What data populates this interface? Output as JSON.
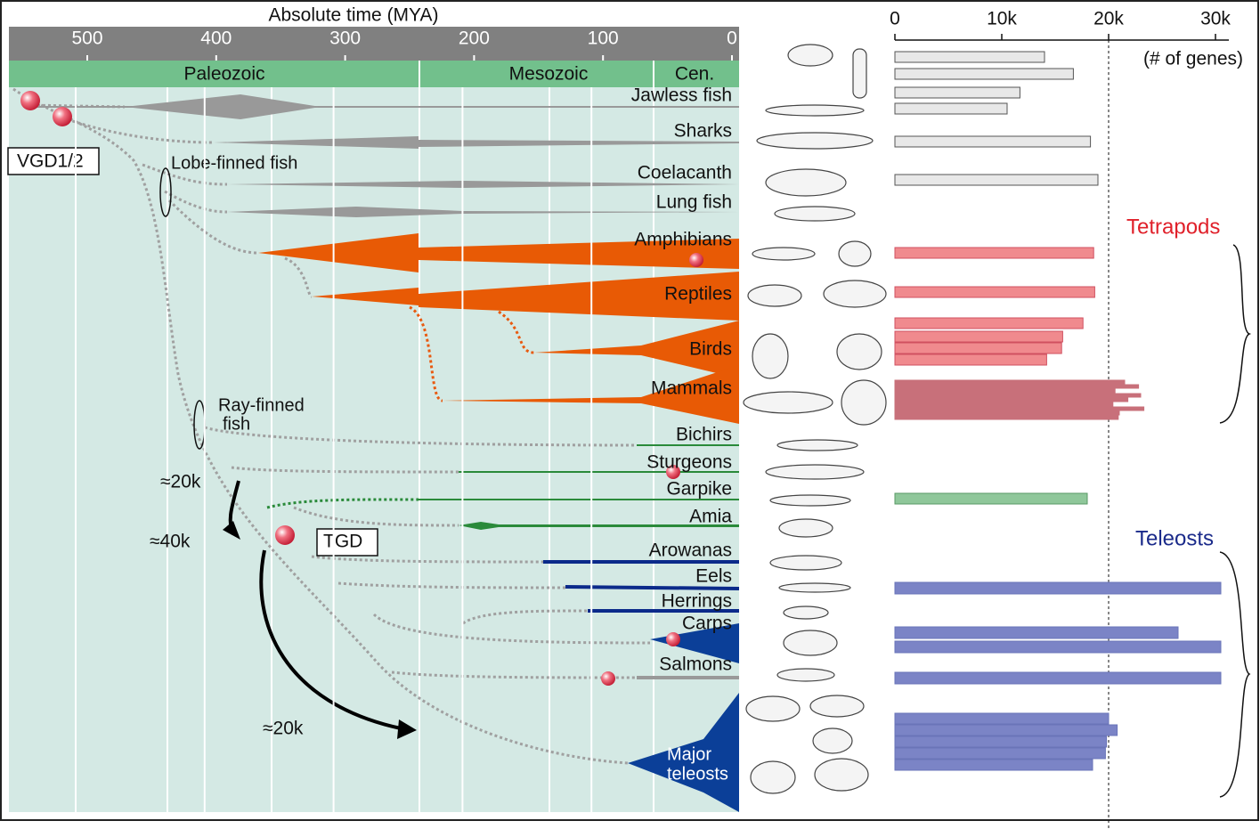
{
  "header": {
    "time_title": "Absolute time (MYA)",
    "gene_unit": "(# of genes)"
  },
  "time_ticks": [
    500,
    400,
    300,
    200,
    100,
    0
  ],
  "eras": [
    "Paleozoic",
    "Mesozoic",
    "Cen."
  ],
  "taxa": [
    "Jawless fish",
    "Sharks",
    "Coelacanth",
    "Lung fish",
    "Amphibians",
    "Reptiles",
    "Birds",
    "Mammals",
    "Bichirs",
    "Sturgeons",
    "Garpike",
    "Amia",
    "Arowanas",
    "Eels",
    "Herrings",
    "Carps",
    "Salmons"
  ],
  "major_teleosts": [
    "Major",
    "teleosts"
  ],
  "annotations": {
    "vgd": "VGD1/2",
    "lobe": "Lobe-finned fish",
    "ray": [
      "Ray-finned",
      "fish"
    ],
    "k20a": "≈20k",
    "k40": "≈40k",
    "tgd": "TGD",
    "k20b": "≈20k",
    "tetrapods": "Tetrapods",
    "teleosts": "Teleosts"
  },
  "gene_ticks": [
    0,
    {
      "value": 10000,
      "label": "10k"
    },
    {
      "value": 20000,
      "label": "20k"
    },
    {
      "value": 30000,
      "label": "30k"
    }
  ],
  "gene_bars": [
    {
      "color": "#e8e8e8",
      "stroke": "#555555",
      "values": [
        14000,
        16700,
        11700,
        10500,
        18300,
        19000
      ]
    },
    {
      "color": "#f08a8e",
      "stroke": "#d05060",
      "values": [
        18600,
        18700,
        17600,
        15700,
        15600,
        14200
      ]
    },
    {
      "color": "#c8707a",
      "stroke": "#c8707a",
      "values": [
        21500,
        22800,
        20600,
        23000,
        21800,
        20400,
        23300,
        21000,
        20900
      ]
    },
    {
      "color": "#8fc79a",
      "stroke": "#5a9a66",
      "values": [
        18000
      ]
    },
    {
      "color": "#7b84c6",
      "stroke": "#6a74b8",
      "values": [
        30500,
        26500,
        30500,
        30500,
        20000,
        20800,
        19800,
        19700,
        18500
      ]
    }
  ]
}
